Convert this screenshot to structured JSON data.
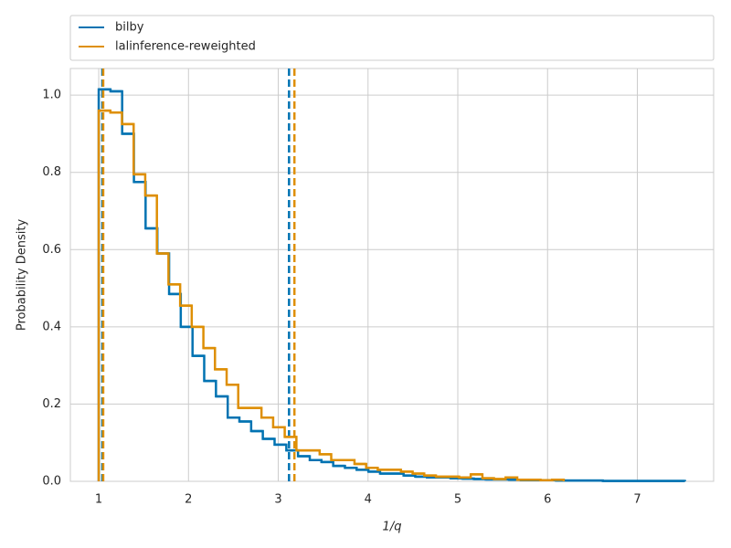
{
  "chart_data": {
    "type": "histogram",
    "xlabel": "1/q",
    "ylabel": "Probability Density",
    "xlim": [
      0.684,
      7.85
    ],
    "ylim": [
      0,
      1.069
    ],
    "xticks": [
      1,
      2,
      3,
      4,
      5,
      6,
      7
    ],
    "yticks": [
      {
        "value": 0,
        "label": "0.0"
      },
      0.2,
      0.4,
      0.6,
      0.8,
      {
        "value": 1,
        "label": "1.0"
      }
    ],
    "grid": true,
    "legend": "top",
    "series": [
      {
        "name": "bilby",
        "color": "#0173b2",
        "bins": [
          1,
          1.131,
          1.261,
          1.392,
          1.522,
          1.653,
          1.784,
          1.914,
          2.045,
          2.175,
          2.306,
          2.437,
          2.567,
          2.698,
          2.828,
          2.959,
          3.09,
          3.22,
          3.351,
          3.481,
          3.612,
          3.743,
          3.873,
          4.004,
          4.134,
          4.265,
          4.396,
          4.526,
          4.657,
          4.787,
          4.918,
          5.049,
          5.179,
          5.31,
          5.44,
          5.571,
          5.702,
          5.832,
          5.963,
          6.093,
          6.224,
          6.355,
          6.485,
          6.616,
          6.746,
          6.877,
          7.008,
          7.138,
          7.269,
          7.399,
          7.53
        ],
        "values": [
          1.015,
          1.01,
          0.9,
          0.775,
          0.655,
          0.59,
          0.485,
          0.4,
          0.325,
          0.26,
          0.22,
          0.165,
          0.155,
          0.13,
          0.11,
          0.095,
          0.08,
          0.065,
          0.055,
          0.05,
          0.04,
          0.035,
          0.03,
          0.025,
          0.02,
          0.02,
          0.015,
          0.012,
          0.01,
          0.01,
          0.008,
          0.007,
          0.006,
          0.005,
          0.005,
          0.004,
          0.003,
          0.003,
          0.003,
          0.002,
          0.002,
          0.002,
          0.002,
          0.001,
          0.001,
          0.001,
          0.001,
          0.001,
          0.001,
          0.001
        ],
        "quantiles": [
          1.04,
          3.12
        ]
      },
      {
        "name": "lalinference-reweighted",
        "color": "#de8f05",
        "bins": [
          1,
          1.13,
          1.259,
          1.389,
          1.518,
          1.648,
          1.777,
          1.907,
          2.036,
          2.166,
          2.295,
          2.425,
          2.554,
          2.684,
          2.813,
          2.943,
          3.072,
          3.202,
          3.331,
          3.461,
          3.59,
          3.72,
          3.849,
          3.979,
          4.108,
          4.238,
          4.367,
          4.497,
          4.626,
          4.756,
          4.885,
          5.015,
          5.144,
          5.274,
          5.403,
          5.533,
          5.662,
          5.792,
          5.921,
          6.051,
          6.18
        ],
        "values": [
          0.96,
          0.955,
          0.925,
          0.795,
          0.74,
          0.59,
          0.51,
          0.455,
          0.4,
          0.345,
          0.29,
          0.25,
          0.19,
          0.19,
          0.165,
          0.14,
          0.115,
          0.08,
          0.08,
          0.07,
          0.055,
          0.055,
          0.045,
          0.035,
          0.03,
          0.03,
          0.025,
          0.02,
          0.015,
          0.012,
          0.012,
          0.01,
          0.018,
          0.008,
          0.006,
          0.01,
          0.004,
          0.004,
          0.003,
          0.004
        ],
        "quantiles": [
          1.05,
          3.18
        ]
      }
    ]
  }
}
